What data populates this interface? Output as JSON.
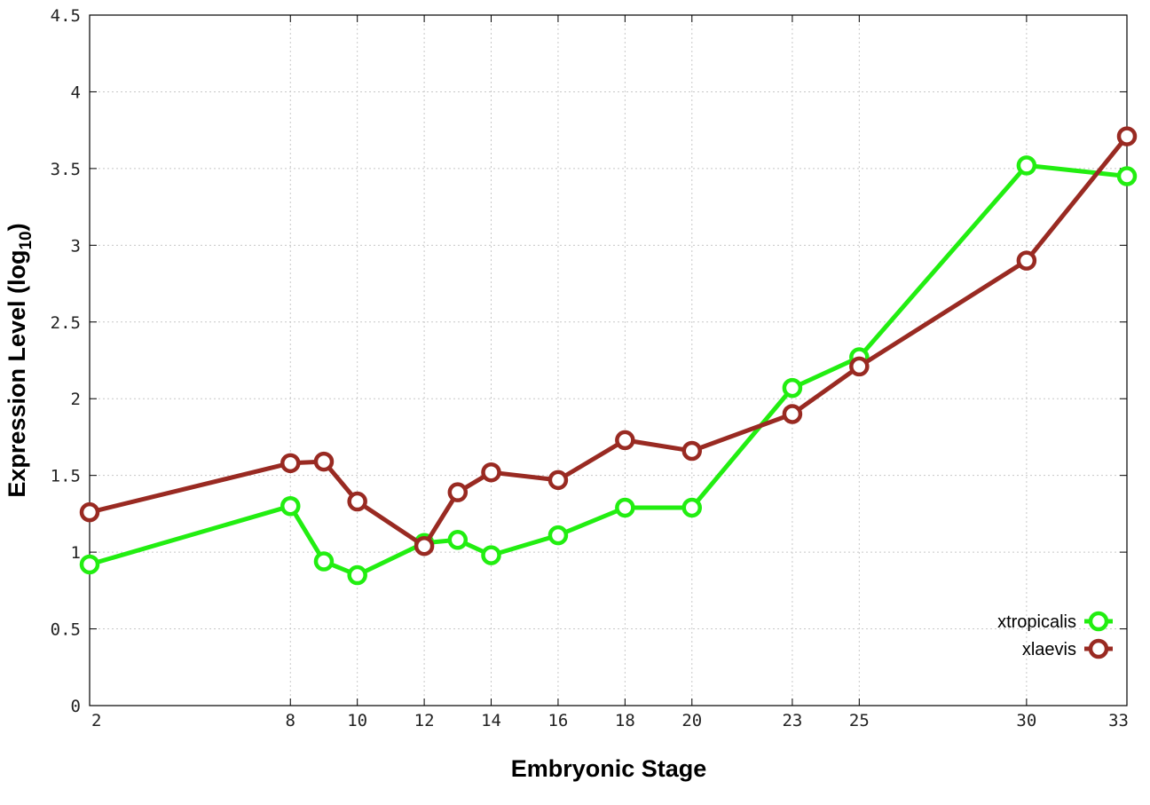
{
  "chart_data": {
    "type": "line",
    "title": "",
    "xlabel": "Embryonic Stage",
    "ylabel_main": "Expression Level (log",
    "ylabel_sub": "10",
    "ylabel_end": ")",
    "x_ticks": [
      2,
      8,
      10,
      12,
      14,
      16,
      18,
      20,
      23,
      25,
      30,
      33
    ],
    "y_ticks": [
      "0",
      "0.5",
      "1",
      "1.5",
      "2",
      "2.5",
      "3",
      "3.5",
      "4",
      "4.5"
    ],
    "xlim": [
      2,
      33
    ],
    "ylim": [
      0,
      4.5
    ],
    "grid": true,
    "legend_position": "bottom-right",
    "x": [
      2,
      8,
      9,
      10,
      12,
      13,
      14,
      16,
      18,
      20,
      23,
      25,
      30,
      33
    ],
    "series": [
      {
        "name": "xtropicalis",
        "color": "#22ee11",
        "values": [
          0.92,
          1.3,
          0.94,
          0.85,
          1.06,
          1.08,
          0.98,
          1.11,
          1.29,
          1.29,
          2.07,
          2.27,
          3.52,
          3.45
        ]
      },
      {
        "name": "xlaevis",
        "color": "#992a22",
        "values": [
          1.26,
          1.58,
          1.59,
          1.33,
          1.04,
          1.39,
          1.52,
          1.47,
          1.73,
          1.66,
          1.9,
          2.21,
          2.9,
          3.71
        ]
      }
    ]
  }
}
